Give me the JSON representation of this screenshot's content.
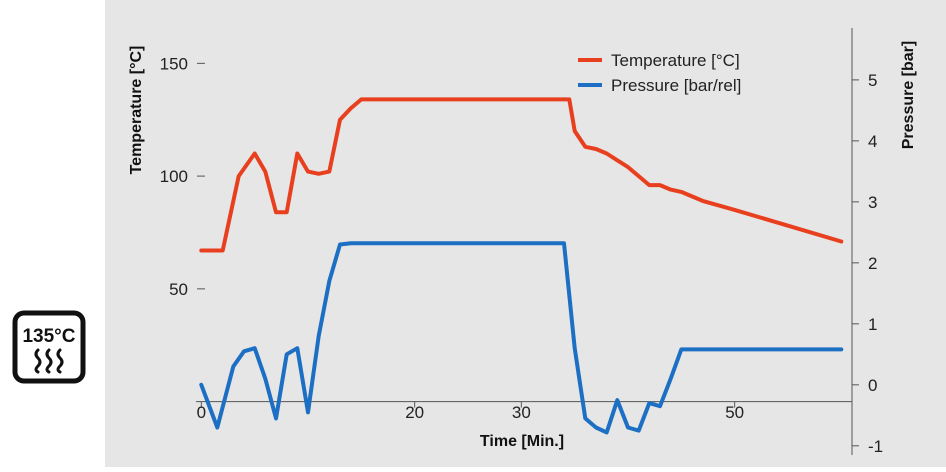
{
  "badge": {
    "line1": "135°C",
    "icon": "steam-waves-icon"
  },
  "chart_data": {
    "type": "line",
    "xlabel": "Time [Min.]",
    "ylabel_left": "Temperature [°C]",
    "ylabel_right": "Pressure [bar]",
    "xlim": [
      -0.5,
      61
    ],
    "x_ticks": [
      0,
      20,
      30,
      50
    ],
    "ylim_left": [
      -25,
      167
    ],
    "y_ticks_left": [
      50,
      100,
      150
    ],
    "ylim_right": [
      -1.2,
      5.9
    ],
    "y_ticks_right": [
      -1,
      0,
      1,
      2,
      3,
      4,
      5
    ],
    "legend_position": "top-right",
    "colors": {
      "background": "#e6e6e6",
      "temperature": "#e8401f",
      "pressure": "#1d6fc4",
      "axis": "#555555"
    },
    "series": [
      {
        "name": "Temperature [°C]",
        "axis": "left",
        "x": [
          0,
          2,
          3.5,
          5,
          6,
          7,
          8,
          9,
          10,
          11,
          12,
          13,
          14,
          15,
          20,
          25,
          30,
          34.5,
          35,
          36,
          37,
          38,
          39,
          40,
          41,
          42,
          43,
          44,
          45,
          47,
          50,
          55,
          60
        ],
        "y": [
          67,
          67,
          100,
          110,
          102,
          84,
          84,
          110,
          102,
          101,
          102,
          125,
          130,
          134,
          134,
          134,
          134,
          134,
          120,
          113,
          112,
          110,
          107,
          104,
          100,
          96,
          96,
          94,
          93,
          89,
          85,
          78,
          71
        ]
      },
      {
        "name": "Pressure [bar/rel]",
        "axis": "right",
        "x": [
          0,
          1.5,
          3,
          4,
          5,
          6,
          7,
          8,
          9,
          10,
          11,
          12,
          13,
          14,
          15,
          20,
          25,
          30,
          34,
          35,
          36,
          37,
          38,
          39,
          40,
          41,
          42,
          43,
          44,
          45,
          46,
          50,
          55,
          60
        ],
        "y": [
          0,
          -0.7,
          0.3,
          0.55,
          0.6,
          0.1,
          -0.55,
          0.5,
          0.6,
          -0.45,
          0.8,
          1.7,
          2.3,
          2.32,
          2.32,
          2.32,
          2.32,
          2.32,
          2.32,
          0.6,
          -0.55,
          -0.7,
          -0.78,
          -0.25,
          -0.7,
          -0.75,
          -0.3,
          -0.35,
          0.1,
          0.58,
          0.58,
          0.58,
          0.58,
          0.58
        ]
      }
    ]
  }
}
